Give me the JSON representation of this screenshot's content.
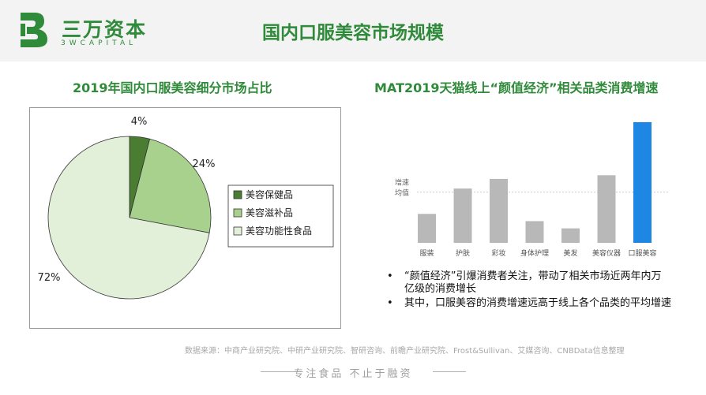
{
  "logo": {
    "name": "三万资本",
    "sub": "3WCAPITAL"
  },
  "page_title": "国内口服美容市场规模",
  "colors": {
    "brand": "#2f8a3a",
    "pie_dark": "#4a7d32",
    "pie_mid": "#a8d18d",
    "pie_light": "#e2efd9",
    "bar_gray": "#b8b8b8",
    "bar_blue": "#1e86e3"
  },
  "chart_data": [
    {
      "type": "pie",
      "title": "2019年国内口服美容细分市场占比",
      "categories": [
        "美容保健品",
        "美容滋补品",
        "美容功能性食品"
      ],
      "values": [
        4,
        24,
        72
      ],
      "labels": [
        "4%",
        "24%",
        "72%"
      ],
      "legend": "right"
    },
    {
      "type": "bar",
      "title": "MAT2019天猫线上“颜值经济”相关品类消费增速",
      "categories": [
        "服装",
        "护肤",
        "彩妆",
        "身体护理",
        "美发",
        "美容仪器",
        "口服美容"
      ],
      "values": [
        0.24,
        0.45,
        0.53,
        0.18,
        0.12,
        0.56,
        1.0
      ],
      "reference_line": {
        "label": "增速均值",
        "value": 0.42
      },
      "y_axis_labels": "none"
    }
  ],
  "bullets": [
    "“颜值经济”引爆消费者关注，带动了相关市场近两年内万亿级的消费增长",
    "其中，口服美容的消费增速远高于线上各个品类的平均增速"
  ],
  "source": "数据来源：中商产业研究院、中研产业研究院、智研咨询、前瞻产业研究院、Frost&Sullivan、艾媒咨询、CNBData信息整理",
  "slogan": "专注食品 不止于融资"
}
